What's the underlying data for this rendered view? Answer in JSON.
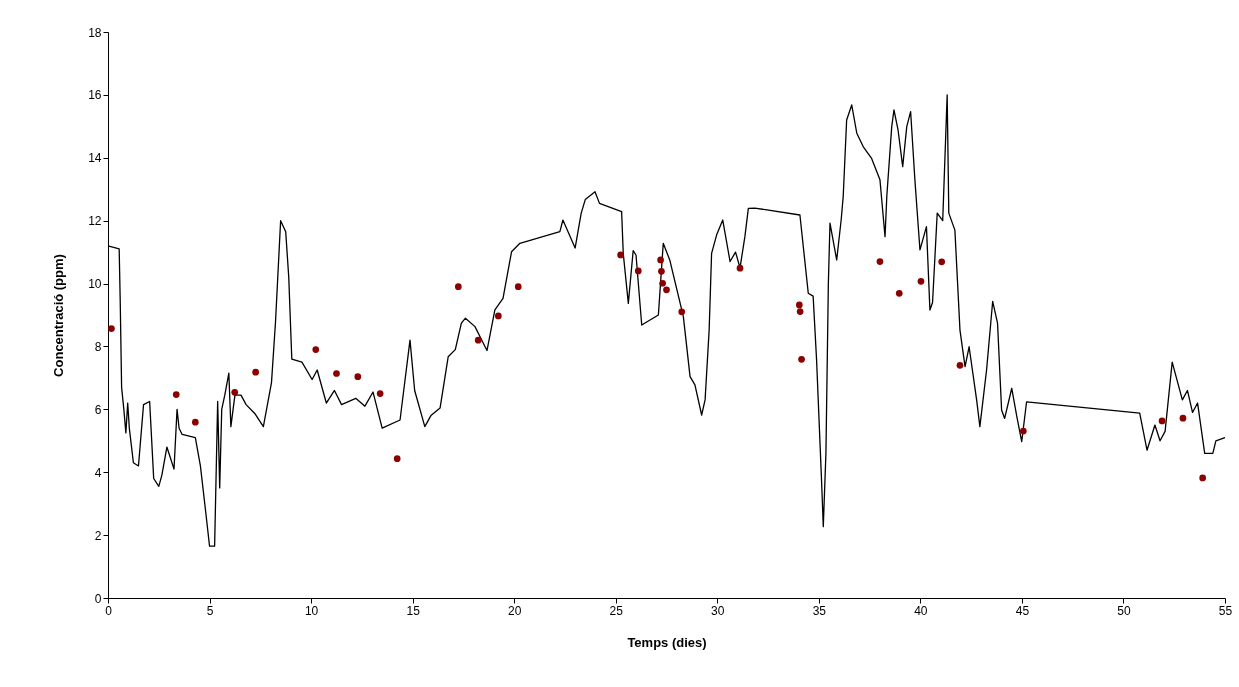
{
  "chart_data": {
    "type": "line",
    "xlabel": "Temps (dies)",
    "ylabel": "Concentració (ppm)",
    "xlim": [
      0,
      55
    ],
    "xticks": [
      0,
      5,
      10,
      15,
      20,
      25,
      30,
      35,
      40,
      45,
      50,
      55
    ],
    "ylim": [
      0,
      18
    ],
    "yticks": [
      0,
      2,
      4,
      6,
      8,
      10,
      12,
      14,
      16,
      18
    ],
    "grid": false,
    "series": [
      {
        "color": "#000000",
        "x": [
          0,
          0.55,
          0.6,
          0.67,
          0.78,
          0.88,
          0.97,
          1.05,
          1.25,
          1.5,
          1.75,
          2.05,
          2.25,
          2.5,
          2.65,
          2.9,
          3.05,
          3.25,
          3.4,
          3.5,
          3.65,
          4.3,
          4.55,
          4.8,
          5.0,
          5.25,
          5.4,
          5.5,
          5.6,
          5.75,
          5.95,
          6.05,
          6.25,
          6.55,
          6.8,
          7.25,
          7.65,
          8.05,
          8.25,
          8.5,
          8.75,
          8.9,
          9.05,
          9.55,
          10.05,
          10.3,
          10.75,
          11.15,
          11.5,
          12.2,
          12.65,
          13.05,
          13.5,
          14.38,
          14.87,
          15.1,
          15.6,
          15.9,
          16.35,
          16.75,
          17.1,
          17.4,
          17.6,
          18.07,
          18.66,
          19.05,
          19.45,
          19.87,
          20.28,
          22.25,
          22.4,
          23.0,
          23.3,
          23.5,
          23.98,
          24.2,
          25.29,
          25.37,
          25.62,
          25.86,
          26.0,
          26.28,
          27.1,
          27.34,
          27.66,
          28.33,
          28.66,
          28.9,
          29.23,
          29.4,
          29.6,
          29.72,
          29.97,
          30.27,
          30.63,
          30.9,
          31.12,
          31.36,
          31.53,
          31.85,
          34.07,
          34.48,
          34.72,
          34.89,
          35.14,
          35.22,
          35.35,
          35.47,
          35.55,
          35.88,
          36.1,
          36.2,
          36.37,
          36.62,
          36.87,
          37.19,
          37.6,
          38.01,
          38.26,
          38.35,
          38.59,
          38.7,
          38.9,
          39.13,
          39.33,
          39.52,
          39.73,
          39.98,
          40.3,
          40.47,
          40.6,
          40.83,
          41.1,
          41.32,
          41.4,
          41.7,
          41.95,
          42.2,
          42.4,
          42.77,
          42.93,
          43.26,
          43.56,
          43.8,
          44.0,
          44.15,
          44.5,
          44.75,
          44.99,
          45.23,
          50.8,
          51.16,
          51.55,
          51.8,
          52.05,
          52.4,
          52.9,
          53.15,
          53.4,
          53.65,
          54.0,
          54.4,
          54.55,
          55.0
        ],
        "values": [
          11.2,
          11.1,
          9.5,
          6.7,
          6.0,
          5.25,
          6.2,
          5.4,
          4.3,
          4.2,
          6.15,
          6.25,
          3.8,
          3.55,
          3.9,
          4.8,
          4.5,
          4.1,
          6.0,
          5.4,
          5.2,
          5.1,
          4.2,
          2.8,
          1.65,
          1.65,
          6.25,
          3.5,
          6.0,
          6.45,
          7.15,
          5.45,
          6.45,
          6.45,
          6.15,
          5.85,
          5.45,
          6.85,
          8.8,
          12.0,
          11.65,
          10.2,
          7.6,
          7.5,
          6.95,
          7.25,
          6.2,
          6.6,
          6.15,
          6.35,
          6.1,
          6.55,
          5.4,
          5.66,
          8.2,
          6.6,
          5.45,
          5.8,
          6.04,
          7.67,
          7.9,
          8.74,
          8.9,
          8.63,
          7.87,
          9.16,
          9.53,
          11.01,
          11.28,
          11.65,
          12.02,
          11.13,
          12.24,
          12.67,
          12.92,
          12.55,
          12.29,
          10.96,
          9.37,
          11.05,
          10.9,
          8.68,
          9.0,
          11.28,
          10.75,
          8.95,
          7.04,
          6.78,
          5.82,
          6.3,
          8.52,
          10.96,
          11.55,
          12.02,
          10.7,
          11.0,
          10.5,
          11.49,
          12.39,
          12.4,
          12.18,
          9.69,
          9.6,
          7.57,
          3.65,
          2.27,
          4.6,
          10.01,
          11.92,
          10.75,
          12.02,
          12.76,
          15.2,
          15.68,
          14.78,
          14.35,
          13.98,
          13.3,
          11.49,
          12.8,
          14.99,
          15.52,
          14.89,
          13.72,
          14.99,
          15.47,
          13.3,
          11.07,
          11.81,
          9.16,
          9.4,
          12.24,
          12.0,
          16.0,
          12.24,
          11.7,
          8.52,
          7.36,
          7.99,
          6.3,
          5.45,
          7.25,
          9.43,
          8.74,
          5.98,
          5.71,
          6.67,
          5.77,
          4.97,
          6.24,
          5.88,
          4.7,
          5.5,
          5.0,
          5.3,
          7.5,
          6.3,
          6.6,
          5.9,
          6.2,
          4.6,
          4.6,
          5.0,
          5.1
        ]
      },
      {
        "type": "scatter",
        "color": "#8b0000",
        "x": [
          0.17,
          3.36,
          4.3,
          6.24,
          7.27,
          10.23,
          11.25,
          12.3,
          13.4,
          14.24,
          17.25,
          18.23,
          19.22,
          20.2,
          25.24,
          26.11,
          27.21,
          27.25,
          27.31,
          27.5,
          28.25,
          31.12,
          34.04,
          34.08,
          34.15,
          38.01,
          38.96,
          40.03,
          41.05,
          41.95,
          45.07,
          51.9,
          52.93,
          53.9
        ],
        "values": [
          8.57,
          6.47,
          5.59,
          6.54,
          7.18,
          7.9,
          7.14,
          7.04,
          6.5,
          4.43,
          9.9,
          8.2,
          8.97,
          9.9,
          10.91,
          10.4,
          10.75,
          10.39,
          10.01,
          9.8,
          9.1,
          10.49,
          9.32,
          9.11,
          7.59,
          10.7,
          9.69,
          10.07,
          10.69,
          7.4,
          5.31,
          5.63,
          5.72,
          3.82
        ]
      }
    ]
  }
}
